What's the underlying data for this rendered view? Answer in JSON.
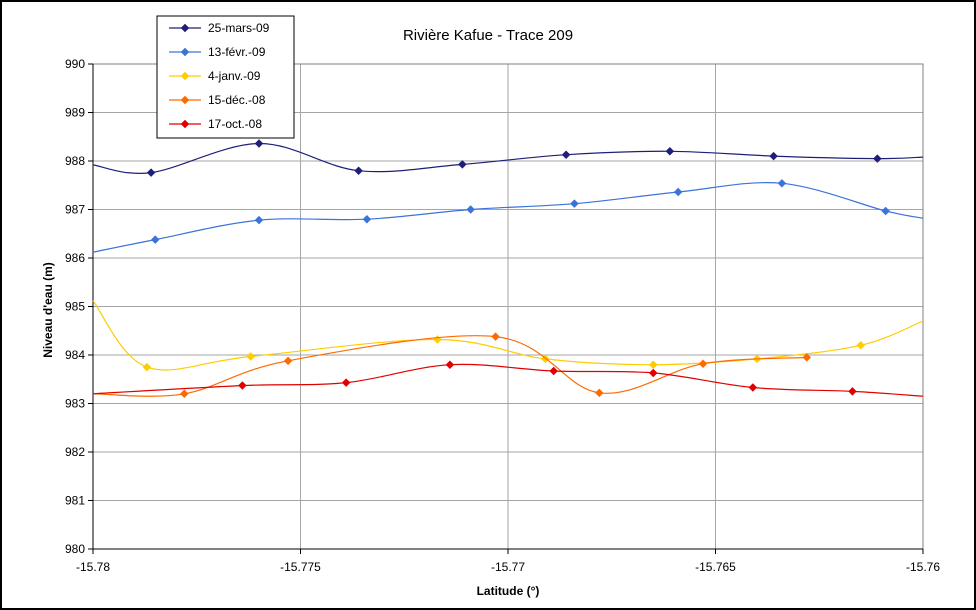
{
  "chart_data": {
    "type": "line",
    "title": "Rivière Kafue - Trace 209",
    "xlabel": "Latitude (°)",
    "ylabel": "Niveau d'eau (m)",
    "xlim": [
      -15.78,
      -15.76
    ],
    "ylim": [
      980,
      990
    ],
    "x_ticks": [
      -15.78,
      -15.775,
      -15.77,
      -15.765,
      -15.76
    ],
    "x_tick_labels": [
      "-15.78",
      "-15.775",
      "-15.77",
      "-15.765",
      "-15.76"
    ],
    "y_ticks": [
      980,
      981,
      982,
      983,
      984,
      985,
      986,
      987,
      988,
      989,
      990
    ],
    "y_tick_labels": [
      "980",
      "981",
      "982",
      "983",
      "984",
      "985",
      "986",
      "987",
      "988",
      "989",
      "990"
    ],
    "grid": true,
    "legend_position": "top-left",
    "series": [
      {
        "name": "25-mars-09",
        "color": "#1f1f7a",
        "x": [
          -15.78,
          -15.7786,
          -15.776,
          -15.7736,
          -15.7711,
          -15.7686,
          -15.7661,
          -15.7636,
          -15.7611,
          -15.76
        ],
        "y": [
          987.92,
          987.76,
          988.36,
          987.8,
          987.93,
          988.13,
          988.2,
          988.1,
          988.05,
          988.08
        ]
      },
      {
        "name": "13-févr.-09",
        "color": "#3a73d9",
        "x": [
          -15.78,
          -15.7785,
          -15.776,
          -15.7734,
          -15.7709,
          -15.7684,
          -15.7659,
          -15.7634,
          -15.7609,
          -15.76
        ],
        "y": [
          986.12,
          986.38,
          986.78,
          986.8,
          987.0,
          987.12,
          987.36,
          987.54,
          986.97,
          986.82
        ]
      },
      {
        "name": "4-janv.-09",
        "color": "#ffcc00",
        "x": [
          -15.78,
          -15.7787,
          -15.7762,
          -15.7717,
          -15.7691,
          -15.7665,
          -15.764,
          -15.7615,
          -15.76
        ],
        "y": [
          985.12,
          983.75,
          983.97,
          984.32,
          983.92,
          983.8,
          983.92,
          984.2,
          984.7
        ]
      },
      {
        "name": "15-déc.-08",
        "color": "#ff6a00",
        "x": [
          -15.78,
          -15.7778,
          -15.7753,
          -15.7703,
          -15.7678,
          -15.7653,
          -15.7628
        ],
        "y": [
          983.2,
          983.2,
          983.88,
          984.38,
          983.22,
          983.82,
          983.95
        ]
      },
      {
        "name": "17-oct.-08",
        "color": "#e00000",
        "x": [
          -15.78,
          -15.7764,
          -15.7739,
          -15.7714,
          -15.7689,
          -15.7665,
          -15.7641,
          -15.7617,
          -15.76
        ],
        "y": [
          983.2,
          983.37,
          983.43,
          983.8,
          983.67,
          983.63,
          983.33,
          983.25,
          983.15
        ]
      }
    ]
  }
}
